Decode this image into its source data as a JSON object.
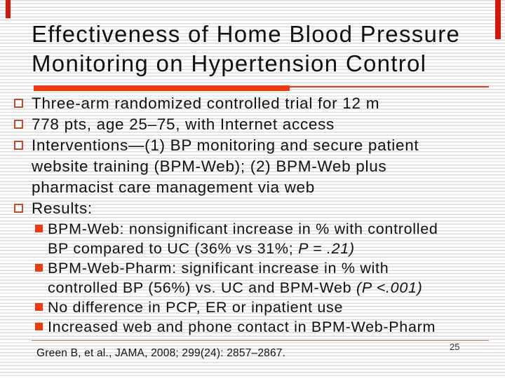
{
  "slide": {
    "title_lines": [
      "Effectiveness of Home Blood Pressure",
      "Monitoring on Hypertension Control"
    ],
    "bullets": [
      {
        "level": 1,
        "lines": [
          [
            {
              "text": "Three-arm randomized controlled trial for 12 m"
            }
          ]
        ]
      },
      {
        "level": 1,
        "lines": [
          [
            {
              "text": "778 pts, age 25–75, with Internet access"
            }
          ]
        ]
      },
      {
        "level": 1,
        "lines": [
          [
            {
              "text": "Interventions—(1) BP monitoring and secure patient"
            }
          ],
          [
            {
              "text": "website training (BPM-Web); (2) BPM-Web plus"
            }
          ],
          [
            {
              "text": "pharmacist care management via web"
            }
          ]
        ]
      },
      {
        "level": 1,
        "lines": [
          [
            {
              "text": "Results:"
            }
          ]
        ]
      },
      {
        "level": 2,
        "lines": [
          [
            {
              "text": "BPM-Web: nonsignificant increase in % with controlled"
            }
          ],
          [
            {
              "text": "BP compared to UC (36% vs 31%; "
            },
            {
              "text": "P = .21)",
              "italic": true
            }
          ]
        ]
      },
      {
        "level": 2,
        "lines": [
          [
            {
              "text": "BPM-Web-Pharm: significant increase in % with"
            }
          ],
          [
            {
              "text": "controlled BP (56%) vs. UC and BPM-Web "
            },
            {
              "text": "(P <.001)",
              "italic": true
            }
          ]
        ]
      },
      {
        "level": 2,
        "lines": [
          [
            {
              "text": "No difference in PCP, ER or inpatient use"
            }
          ]
        ]
      },
      {
        "level": 2,
        "lines": [
          [
            {
              "text": "Increased web and phone contact in BPM-Web-Pharm"
            }
          ]
        ]
      }
    ],
    "footer": {
      "citation": "Green B, et al., JAMA, 2008; 299(24): 2857–2867.",
      "page_number": "25"
    },
    "colors": {
      "accent": "#ee3a0c",
      "bullet_outline": "#c24a26",
      "divider": "#c08262",
      "corner_red": "#d41708",
      "stripe": "#dbdbdb",
      "text": "#111111"
    }
  }
}
